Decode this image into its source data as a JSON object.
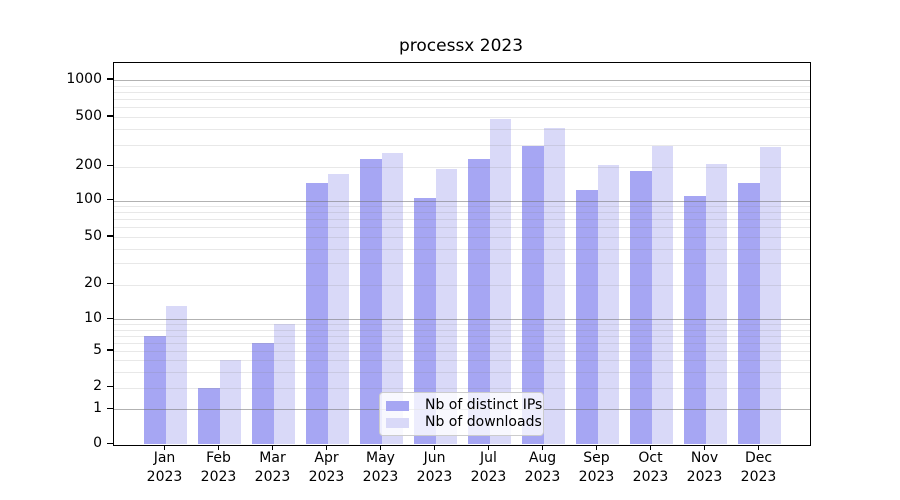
{
  "title": "processx 2023",
  "colors": {
    "background": "#ffffff",
    "bar_distinct_ips": "#a6a6f3",
    "bar_downloads": "#d9d9f8",
    "grid_major": "#b0b0b0",
    "grid_minor": "#e7e7e7",
    "axis": "#000000",
    "legend_border": "#cccccc"
  },
  "legend": {
    "items": [
      {
        "label": "Nb of distinct IPs",
        "color": "#a6a6f3"
      },
      {
        "label": "Nb of downloads",
        "color": "#d9d9f8"
      }
    ]
  },
  "chart_data": {
    "type": "bar",
    "title": "processx 2023",
    "categories": [
      "Jan 2023",
      "Feb 2023",
      "Mar 2023",
      "Apr 2023",
      "May 2023",
      "Jun 2023",
      "Jul 2023",
      "Aug 2023",
      "Sep 2023",
      "Oct 2023",
      "Nov 2023",
      "Dec 2023"
    ],
    "series": [
      {
        "name": "Nb of distinct IPs",
        "color": "#a6a6f3",
        "values": [
          7,
          2,
          6,
          144,
          230,
          106,
          228,
          292,
          123,
          182,
          110,
          144
        ]
      },
      {
        "name": "Nb of downloads",
        "color": "#d9d9f8",
        "values": [
          13,
          4,
          9,
          170,
          255,
          190,
          483,
          410,
          205,
          291,
          210,
          288
        ]
      }
    ],
    "yscale": "symlog",
    "yticks": [
      0,
      1,
      2,
      5,
      10,
      20,
      50,
      100,
      200,
      500,
      1000
    ],
    "ylim": [
      0,
      1400
    ],
    "grid": true,
    "legend_position": "lower center"
  }
}
